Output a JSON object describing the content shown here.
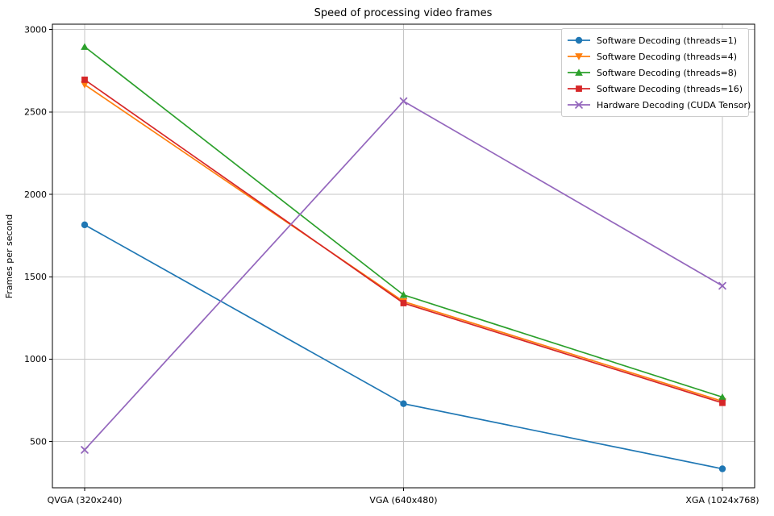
{
  "chart_data": {
    "type": "line",
    "title": "Speed of processing video frames",
    "xlabel": "",
    "ylabel": "Frames per second",
    "categories": [
      "QVGA (320x240)",
      "VGA (640x480)",
      "XGA (1024x768)"
    ],
    "series": [
      {
        "name": "Software Decoding (threads=1)",
        "color": "#1f77b4",
        "marker": "circle",
        "values": [
          1815,
          730,
          335
        ]
      },
      {
        "name": "Software Decoding (threads=4)",
        "color": "#ff7f0e",
        "marker": "triangle-down",
        "values": [
          2665,
          1350,
          745
        ]
      },
      {
        "name": "Software Decoding (threads=8)",
        "color": "#2ca02c",
        "marker": "triangle-up",
        "values": [
          2895,
          1390,
          770
        ]
      },
      {
        "name": "Software Decoding (threads=16)",
        "color": "#d62728",
        "marker": "square",
        "values": [
          2695,
          1340,
          735
        ]
      },
      {
        "name": "Hardware Decoding (CUDA Tensor)",
        "color": "#9467bd",
        "marker": "x",
        "values": [
          450,
          2565,
          1445
        ]
      }
    ],
    "yticks": [
      500,
      1000,
      1500,
      2000,
      2500,
      3000
    ],
    "ylim": [
      220,
      3032
    ],
    "grid": true,
    "grid_color": "#c6c6c6",
    "axis_color": "#000000",
    "legend_position": "upper right"
  }
}
